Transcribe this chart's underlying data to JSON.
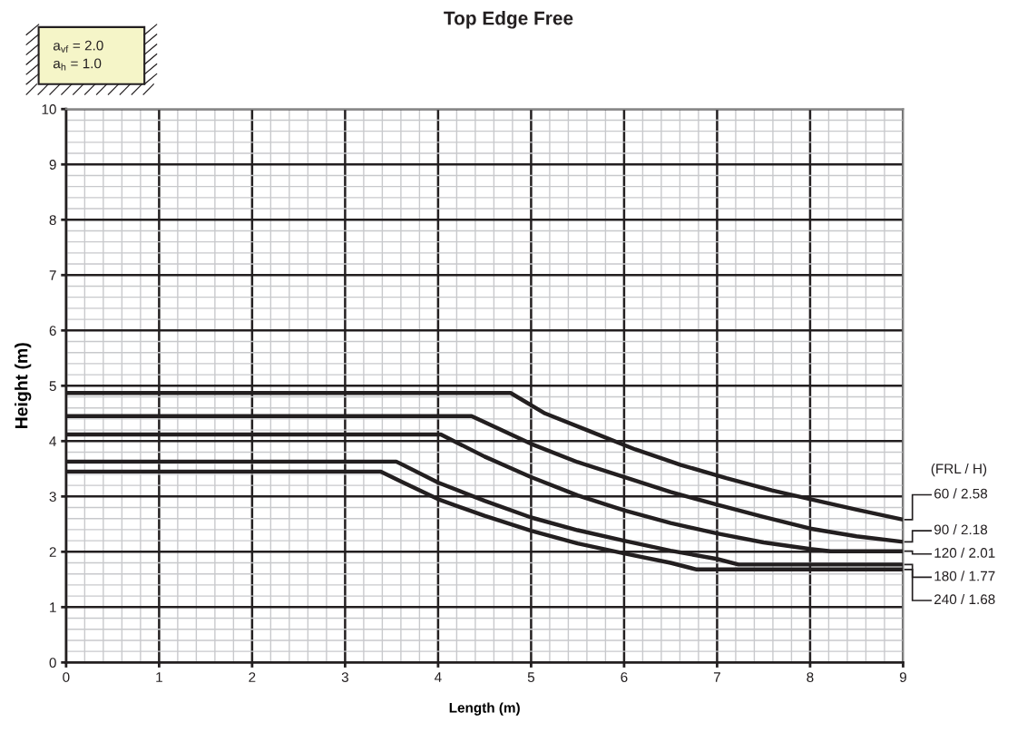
{
  "chart_data": {
    "type": "line",
    "title": "Top Edge Free",
    "xlabel": "Length (m)",
    "ylabel": "Height (m)",
    "legend_title": "(FRL / H)",
    "annotations": [
      "a$_{vf}$ = 2.0\na$_{h}$ = 1.0"
    ],
    "xlim": [
      0,
      9
    ],
    "ylim": [
      0,
      10
    ],
    "xticks": [
      0,
      1,
      2,
      3,
      4,
      5,
      6,
      7,
      8,
      9
    ],
    "yticks": [
      0,
      1,
      2,
      3,
      4,
      5,
      6,
      7,
      8,
      9,
      10
    ],
    "grid": true,
    "legend": "right",
    "marker": "none",
    "line_style": "solid",
    "series": [
      {
        "name": "60 / 2.58",
        "color": "#231f20",
        "x": [
          0,
          4.78,
          5.15,
          5.63,
          6.12,
          6.61,
          7.1,
          7.59,
          8.08,
          8.5,
          9
        ],
        "values": [
          4.87,
          4.87,
          4.5,
          4.18,
          3.85,
          3.57,
          3.33,
          3.11,
          2.92,
          2.76,
          2.58
        ]
      },
      {
        "name": "90 / 2.18",
        "color": "#231f20",
        "x": [
          0,
          4.36,
          5,
          5.5,
          6,
          6.5,
          7,
          7.5,
          8,
          8.5,
          9
        ],
        "values": [
          4.45,
          4.45,
          3.95,
          3.62,
          3.35,
          3.08,
          2.85,
          2.63,
          2.42,
          2.28,
          2.18
        ]
      },
      {
        "name": "120 / 2.01",
        "color": "#231f20",
        "x": [
          0,
          4.03,
          4.5,
          5,
          5.5,
          6,
          6.5,
          7,
          7.5,
          8,
          8.22,
          9
        ],
        "values": [
          4.12,
          4.12,
          3.72,
          3.35,
          3.02,
          2.75,
          2.52,
          2.33,
          2.17,
          2.05,
          2.01,
          2.01
        ]
      },
      {
        "name": "180 / 1.77",
        "color": "#231f20",
        "x": [
          0,
          3.55,
          4,
          4.5,
          5,
          5.5,
          6,
          6.5,
          7,
          7.23,
          9
        ],
        "values": [
          3.63,
          3.63,
          3.25,
          2.92,
          2.62,
          2.39,
          2.2,
          2.02,
          1.87,
          1.77,
          1.77
        ]
      },
      {
        "name": "240 / 1.68",
        "color": "#231f20",
        "x": [
          0,
          3.38,
          3.6,
          4,
          4.5,
          5,
          5.5,
          6,
          6.5,
          6.78,
          9
        ],
        "values": [
          3.45,
          3.45,
          3.27,
          2.95,
          2.65,
          2.38,
          2.15,
          1.97,
          1.8,
          1.68,
          1.68
        ]
      }
    ]
  }
}
